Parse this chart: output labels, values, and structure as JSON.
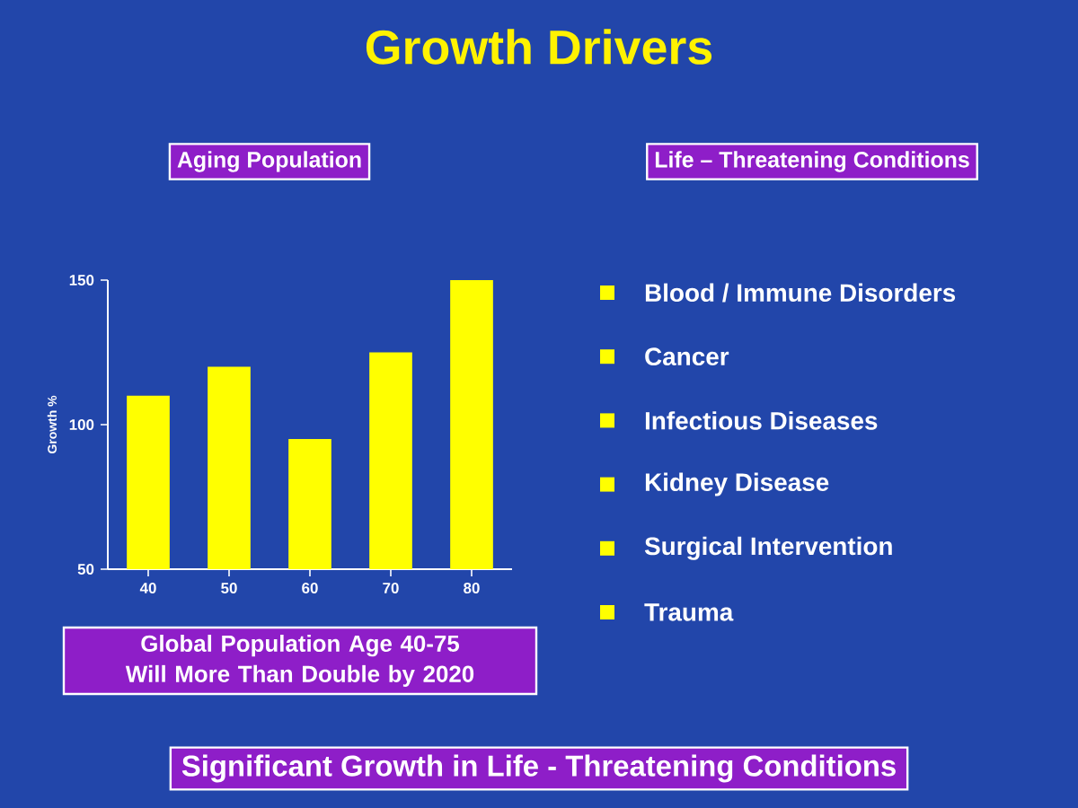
{
  "chart_data": {
    "type": "bar",
    "title": "Growth Drivers",
    "subtitle": "Aging Population",
    "ylabel": "Growth %",
    "categories": [
      "40",
      "50",
      "60",
      "70",
      "80"
    ],
    "values": [
      110,
      120,
      95,
      125,
      150
    ],
    "color": "#ffff00",
    "ylim": [
      50,
      150
    ],
    "yticks": [
      50,
      100,
      150
    ],
    "annotations": [
      "Life – Threatening Conditions",
      "Blood / Immune Disorders",
      "Cancer",
      "Infectious Diseases",
      "Kidney Disease",
      "Surgical Intervention",
      "Trauma",
      "Global Population Age 40-75 Will More Than Double by 2020",
      "Significant Growth in Life - Threatening Conditions"
    ]
  }
}
